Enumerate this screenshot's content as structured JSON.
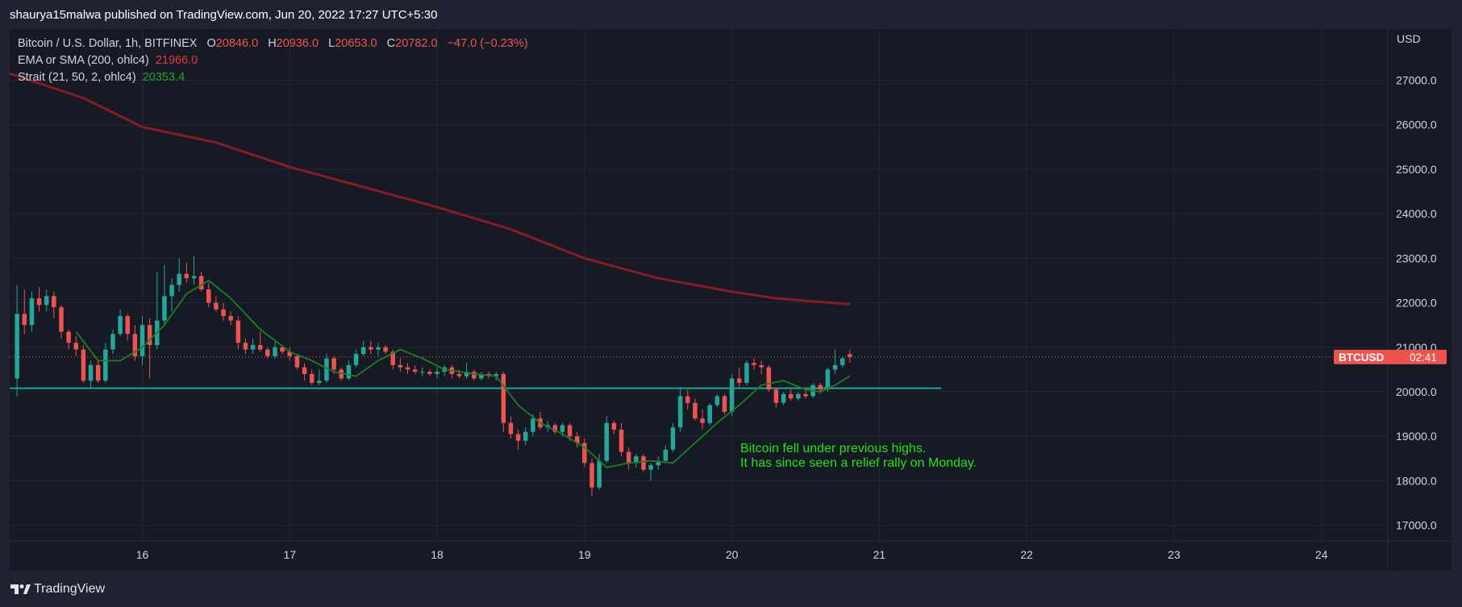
{
  "header": {
    "title": "shaurya15malwa published on TradingView.com, Jun 20, 2022 17:27 UTC+5:30"
  },
  "footer": {
    "brand": "TradingView"
  },
  "legend": {
    "symbol": "Bitcoin / U.S. Dollar, 1h, BITFINEX",
    "ohlc": {
      "o": "20846.0",
      "h": "20936.0",
      "l": "20653.0",
      "c": "20782.0",
      "change": "−47.0 (−0.23%)"
    },
    "ema": {
      "label": "EMA or SMA (200, ohlc4)",
      "value": "21966.0"
    },
    "strait": {
      "label": "Strait (21, 50, 2, ohlc4)",
      "value": "20353.4"
    }
  },
  "annotation": {
    "line1": "Bitcoin fell under previous highs.",
    "line2": "It has since seen a relief rally on Monday."
  },
  "price_tag": {
    "symbol": "BTCUSD",
    "time": "02:41"
  },
  "colors": {
    "up": "#26a69a",
    "down": "#ef5350",
    "ema": "#8b1a24",
    "strait": "#1e7d26",
    "support": "#17a995",
    "annotation": "#22e312",
    "tag": "#ef5350"
  },
  "chart_data": {
    "type": "candlestick",
    "currency": "USD",
    "x_ticks": [
      "16",
      "17",
      "18",
      "19",
      "20",
      "21",
      "22",
      "23",
      "24"
    ],
    "y_ticks": [
      17000,
      18000,
      19000,
      20000,
      21000,
      22000,
      23000,
      24000,
      25000,
      26000,
      27000
    ],
    "ylim": [
      16650,
      28150
    ],
    "xlim": [
      15.1,
      24.45
    ],
    "support_level": 20080,
    "last_price": 20782,
    "candles": [
      {
        "t": 15.15,
        "o": 20300,
        "h": 22400,
        "l": 19900,
        "c": 21750
      },
      {
        "t": 15.2,
        "o": 21750,
        "h": 22300,
        "l": 21300,
        "c": 21500
      },
      {
        "t": 15.25,
        "o": 21500,
        "h": 22250,
        "l": 21350,
        "c": 22100
      },
      {
        "t": 15.3,
        "o": 22100,
        "h": 22350,
        "l": 21800,
        "c": 21950
      },
      {
        "t": 15.35,
        "o": 21950,
        "h": 22300,
        "l": 21800,
        "c": 22150
      },
      {
        "t": 15.4,
        "o": 22150,
        "h": 22250,
        "l": 21650,
        "c": 21900
      },
      {
        "t": 15.45,
        "o": 21900,
        "h": 21950,
        "l": 21200,
        "c": 21350
      },
      {
        "t": 15.5,
        "o": 21350,
        "h": 21400,
        "l": 20950,
        "c": 21100
      },
      {
        "t": 15.55,
        "o": 21100,
        "h": 21250,
        "l": 20800,
        "c": 20950
      },
      {
        "t": 15.6,
        "o": 20950,
        "h": 21050,
        "l": 20200,
        "c": 20250
      },
      {
        "t": 15.65,
        "o": 20250,
        "h": 20700,
        "l": 20100,
        "c": 20600
      },
      {
        "t": 15.7,
        "o": 20600,
        "h": 20700,
        "l": 20200,
        "c": 20250
      },
      {
        "t": 15.75,
        "o": 20250,
        "h": 21100,
        "l": 20200,
        "c": 20950
      },
      {
        "t": 15.8,
        "o": 20950,
        "h": 21400,
        "l": 20850,
        "c": 21300
      },
      {
        "t": 15.85,
        "o": 21300,
        "h": 21850,
        "l": 21250,
        "c": 21700
      },
      {
        "t": 15.9,
        "o": 21700,
        "h": 21750,
        "l": 21150,
        "c": 21300
      },
      {
        "t": 15.95,
        "o": 21300,
        "h": 21500,
        "l": 20700,
        "c": 20800
      },
      {
        "t": 16.0,
        "o": 20800,
        "h": 21700,
        "l": 20600,
        "c": 21500
      },
      {
        "t": 16.05,
        "o": 21500,
        "h": 21650,
        "l": 20300,
        "c": 21050
      },
      {
        "t": 16.1,
        "o": 21050,
        "h": 22700,
        "l": 20950,
        "c": 21600
      },
      {
        "t": 16.15,
        "o": 21600,
        "h": 22850,
        "l": 21500,
        "c": 22150
      },
      {
        "t": 16.2,
        "o": 22150,
        "h": 22550,
        "l": 21800,
        "c": 22400
      },
      {
        "t": 16.25,
        "o": 22400,
        "h": 23000,
        "l": 22250,
        "c": 22650
      },
      {
        "t": 16.3,
        "o": 22650,
        "h": 22900,
        "l": 22450,
        "c": 22550
      },
      {
        "t": 16.35,
        "o": 22550,
        "h": 23050,
        "l": 22400,
        "c": 22600
      },
      {
        "t": 16.4,
        "o": 22600,
        "h": 22700,
        "l": 22250,
        "c": 22300
      },
      {
        "t": 16.45,
        "o": 22300,
        "h": 22450,
        "l": 21900,
        "c": 22000
      },
      {
        "t": 16.5,
        "o": 22000,
        "h": 22150,
        "l": 21800,
        "c": 21850
      },
      {
        "t": 16.55,
        "o": 21850,
        "h": 22000,
        "l": 21600,
        "c": 21700
      },
      {
        "t": 16.6,
        "o": 21700,
        "h": 21800,
        "l": 21500,
        "c": 21600
      },
      {
        "t": 16.65,
        "o": 21600,
        "h": 21700,
        "l": 20950,
        "c": 21100
      },
      {
        "t": 16.7,
        "o": 21100,
        "h": 21200,
        "l": 20850,
        "c": 20950
      },
      {
        "t": 16.75,
        "o": 20950,
        "h": 21200,
        "l": 20850,
        "c": 21050
      },
      {
        "t": 16.8,
        "o": 21050,
        "h": 21350,
        "l": 20900,
        "c": 20950
      },
      {
        "t": 16.85,
        "o": 20950,
        "h": 21000,
        "l": 20750,
        "c": 20800
      },
      {
        "t": 16.9,
        "o": 20800,
        "h": 21150,
        "l": 20750,
        "c": 21000
      },
      {
        "t": 16.95,
        "o": 21000,
        "h": 21050,
        "l": 20850,
        "c": 20900
      },
      {
        "t": 17.0,
        "o": 20900,
        "h": 21000,
        "l": 20700,
        "c": 20800
      },
      {
        "t": 17.05,
        "o": 20800,
        "h": 20850,
        "l": 20500,
        "c": 20550
      },
      {
        "t": 17.1,
        "o": 20550,
        "h": 20650,
        "l": 20250,
        "c": 20400
      },
      {
        "t": 17.15,
        "o": 20400,
        "h": 20500,
        "l": 20150,
        "c": 20200
      },
      {
        "t": 17.2,
        "o": 20200,
        "h": 20500,
        "l": 20150,
        "c": 20250
      },
      {
        "t": 17.25,
        "o": 20250,
        "h": 20850,
        "l": 20200,
        "c": 20750
      },
      {
        "t": 17.3,
        "o": 20750,
        "h": 20800,
        "l": 20400,
        "c": 20500
      },
      {
        "t": 17.35,
        "o": 20500,
        "h": 20550,
        "l": 20250,
        "c": 20300
      },
      {
        "t": 17.4,
        "o": 20300,
        "h": 20700,
        "l": 20250,
        "c": 20600
      },
      {
        "t": 17.45,
        "o": 20600,
        "h": 20950,
        "l": 20550,
        "c": 20850
      },
      {
        "t": 17.5,
        "o": 20850,
        "h": 21150,
        "l": 20800,
        "c": 21000
      },
      {
        "t": 17.55,
        "o": 21000,
        "h": 21150,
        "l": 20850,
        "c": 20950
      },
      {
        "t": 17.6,
        "o": 20950,
        "h": 21100,
        "l": 20800,
        "c": 21000
      },
      {
        "t": 17.65,
        "o": 21000,
        "h": 21050,
        "l": 20850,
        "c": 20900
      },
      {
        "t": 17.7,
        "o": 20900,
        "h": 20950,
        "l": 20500,
        "c": 20600
      },
      {
        "t": 17.75,
        "o": 20600,
        "h": 20750,
        "l": 20450,
        "c": 20550
      },
      {
        "t": 17.8,
        "o": 20550,
        "h": 20650,
        "l": 20400,
        "c": 20500
      },
      {
        "t": 17.85,
        "o": 20500,
        "h": 20600,
        "l": 20400,
        "c": 20450
      },
      {
        "t": 17.9,
        "o": 20450,
        "h": 20550,
        "l": 20350,
        "c": 20450
      },
      {
        "t": 17.95,
        "o": 20450,
        "h": 20500,
        "l": 20350,
        "c": 20400
      },
      {
        "t": 18.0,
        "o": 20400,
        "h": 20550,
        "l": 20300,
        "c": 20450
      },
      {
        "t": 18.05,
        "o": 20450,
        "h": 20600,
        "l": 20350,
        "c": 20550
      },
      {
        "t": 18.1,
        "o": 20550,
        "h": 20600,
        "l": 20300,
        "c": 20400
      },
      {
        "t": 18.15,
        "o": 20400,
        "h": 20500,
        "l": 20300,
        "c": 20350
      },
      {
        "t": 18.2,
        "o": 20350,
        "h": 20650,
        "l": 20300,
        "c": 20450
      },
      {
        "t": 18.25,
        "o": 20450,
        "h": 20500,
        "l": 20250,
        "c": 20300
      },
      {
        "t": 18.3,
        "o": 20300,
        "h": 20450,
        "l": 20250,
        "c": 20400
      },
      {
        "t": 18.35,
        "o": 20400,
        "h": 20450,
        "l": 20300,
        "c": 20350
      },
      {
        "t": 18.4,
        "o": 20350,
        "h": 20450,
        "l": 20250,
        "c": 20400
      },
      {
        "t": 18.45,
        "o": 20400,
        "h": 20450,
        "l": 19100,
        "c": 19300
      },
      {
        "t": 18.5,
        "o": 19300,
        "h": 19450,
        "l": 18950,
        "c": 19050
      },
      {
        "t": 18.55,
        "o": 19050,
        "h": 19150,
        "l": 18700,
        "c": 18900
      },
      {
        "t": 18.6,
        "o": 18900,
        "h": 19200,
        "l": 18800,
        "c": 19100
      },
      {
        "t": 18.65,
        "o": 19100,
        "h": 19500,
        "l": 19000,
        "c": 19400
      },
      {
        "t": 18.7,
        "o": 19400,
        "h": 19550,
        "l": 19150,
        "c": 19200
      },
      {
        "t": 18.75,
        "o": 19200,
        "h": 19350,
        "l": 19100,
        "c": 19250
      },
      {
        "t": 18.8,
        "o": 19250,
        "h": 19300,
        "l": 19050,
        "c": 19100
      },
      {
        "t": 18.85,
        "o": 19100,
        "h": 19300,
        "l": 19000,
        "c": 19250
      },
      {
        "t": 18.9,
        "o": 19250,
        "h": 19300,
        "l": 18900,
        "c": 19000
      },
      {
        "t": 18.95,
        "o": 19000,
        "h": 19100,
        "l": 18750,
        "c": 18850
      },
      {
        "t": 19.0,
        "o": 18850,
        "h": 18950,
        "l": 18300,
        "c": 18400
      },
      {
        "t": 19.05,
        "o": 18400,
        "h": 18500,
        "l": 17650,
        "c": 17850
      },
      {
        "t": 19.1,
        "o": 17850,
        "h": 18600,
        "l": 17800,
        "c": 18450
      },
      {
        "t": 19.15,
        "o": 18450,
        "h": 19450,
        "l": 18400,
        "c": 19300
      },
      {
        "t": 19.2,
        "o": 19300,
        "h": 19350,
        "l": 19050,
        "c": 19150
      },
      {
        "t": 19.25,
        "o": 19150,
        "h": 19300,
        "l": 18550,
        "c": 18650
      },
      {
        "t": 19.3,
        "o": 18650,
        "h": 18750,
        "l": 18250,
        "c": 18400
      },
      {
        "t": 19.35,
        "o": 18400,
        "h": 18600,
        "l": 18300,
        "c": 18550
      },
      {
        "t": 19.4,
        "o": 18550,
        "h": 18600,
        "l": 18200,
        "c": 18250
      },
      {
        "t": 19.45,
        "o": 18250,
        "h": 18400,
        "l": 18000,
        "c": 18350
      },
      {
        "t": 19.5,
        "o": 18350,
        "h": 18550,
        "l": 18250,
        "c": 18450
      },
      {
        "t": 19.55,
        "o": 18450,
        "h": 18800,
        "l": 18400,
        "c": 18700
      },
      {
        "t": 19.6,
        "o": 18700,
        "h": 19300,
        "l": 18650,
        "c": 19200
      },
      {
        "t": 19.65,
        "o": 19200,
        "h": 20100,
        "l": 19100,
        "c": 19900
      },
      {
        "t": 19.7,
        "o": 19900,
        "h": 20050,
        "l": 19600,
        "c": 19750
      },
      {
        "t": 19.75,
        "o": 19750,
        "h": 19850,
        "l": 19350,
        "c": 19400
      },
      {
        "t": 19.8,
        "o": 19400,
        "h": 19600,
        "l": 19150,
        "c": 19300
      },
      {
        "t": 19.85,
        "o": 19300,
        "h": 19750,
        "l": 19250,
        "c": 19700
      },
      {
        "t": 19.9,
        "o": 19700,
        "h": 19950,
        "l": 19650,
        "c": 19900
      },
      {
        "t": 19.95,
        "o": 19900,
        "h": 19950,
        "l": 19500,
        "c": 19550
      },
      {
        "t": 20.0,
        "o": 19550,
        "h": 20400,
        "l": 19450,
        "c": 20300
      },
      {
        "t": 20.05,
        "o": 20300,
        "h": 20550,
        "l": 20100,
        "c": 20200
      },
      {
        "t": 20.1,
        "o": 20200,
        "h": 20700,
        "l": 20150,
        "c": 20650
      },
      {
        "t": 20.15,
        "o": 20650,
        "h": 20750,
        "l": 20500,
        "c": 20600
      },
      {
        "t": 20.2,
        "o": 20600,
        "h": 20700,
        "l": 20400,
        "c": 20550
      },
      {
        "t": 20.25,
        "o": 20550,
        "h": 20600,
        "l": 20000,
        "c": 20050
      },
      {
        "t": 20.3,
        "o": 20050,
        "h": 20100,
        "l": 19650,
        "c": 19750
      },
      {
        "t": 20.35,
        "o": 19750,
        "h": 20000,
        "l": 19700,
        "c": 19950
      },
      {
        "t": 20.4,
        "o": 19950,
        "h": 20050,
        "l": 19800,
        "c": 19850
      },
      {
        "t": 20.45,
        "o": 19850,
        "h": 20000,
        "l": 19800,
        "c": 19950
      },
      {
        "t": 20.5,
        "o": 19950,
        "h": 20100,
        "l": 19850,
        "c": 19900
      },
      {
        "t": 20.55,
        "o": 19900,
        "h": 20200,
        "l": 19850,
        "c": 20150
      },
      {
        "t": 20.6,
        "o": 20150,
        "h": 20200,
        "l": 19950,
        "c": 20050
      },
      {
        "t": 20.65,
        "o": 20050,
        "h": 20550,
        "l": 20000,
        "c": 20500
      },
      {
        "t": 20.7,
        "o": 20500,
        "h": 20950,
        "l": 20400,
        "c": 20600
      },
      {
        "t": 20.75,
        "o": 20600,
        "h": 20800,
        "l": 20550,
        "c": 20750
      },
      {
        "t": 20.8,
        "o": 20846,
        "h": 20936,
        "l": 20653,
        "c": 20782
      }
    ],
    "ema_line": [
      [
        15.1,
        27150
      ],
      [
        15.6,
        26600
      ],
      [
        16.0,
        25950
      ],
      [
        16.5,
        25600
      ],
      [
        17.0,
        25050
      ],
      [
        17.5,
        24600
      ],
      [
        18.0,
        24150
      ],
      [
        18.5,
        23650
      ],
      [
        19.0,
        23000
      ],
      [
        19.5,
        22550
      ],
      [
        20.0,
        22250
      ],
      [
        20.3,
        22100
      ],
      [
        20.8,
        21966
      ]
    ],
    "strait_line": [
      [
        15.55,
        21350
      ],
      [
        15.7,
        20700
      ],
      [
        15.85,
        20700
      ],
      [
        16.0,
        21000
      ],
      [
        16.15,
        21500
      ],
      [
        16.3,
        22200
      ],
      [
        16.45,
        22500
      ],
      [
        16.6,
        22100
      ],
      [
        16.8,
        21400
      ],
      [
        17.0,
        20900
      ],
      [
        17.15,
        20700
      ],
      [
        17.3,
        20450
      ],
      [
        17.45,
        20350
      ],
      [
        17.6,
        20700
      ],
      [
        17.75,
        20950
      ],
      [
        17.9,
        20750
      ],
      [
        18.05,
        20500
      ],
      [
        18.25,
        20400
      ],
      [
        18.4,
        20350
      ],
      [
        18.55,
        19700
      ],
      [
        18.7,
        19300
      ],
      [
        18.85,
        19050
      ],
      [
        19.0,
        18750
      ],
      [
        19.15,
        18300
      ],
      [
        19.3,
        18400
      ],
      [
        19.45,
        18450
      ],
      [
        19.6,
        18400
      ],
      [
        19.75,
        18850
      ],
      [
        19.9,
        19300
      ],
      [
        20.05,
        19700
      ],
      [
        20.2,
        20150
      ],
      [
        20.35,
        20250
      ],
      [
        20.5,
        20050
      ],
      [
        20.6,
        20000
      ],
      [
        20.7,
        20150
      ],
      [
        20.8,
        20353
      ]
    ]
  }
}
